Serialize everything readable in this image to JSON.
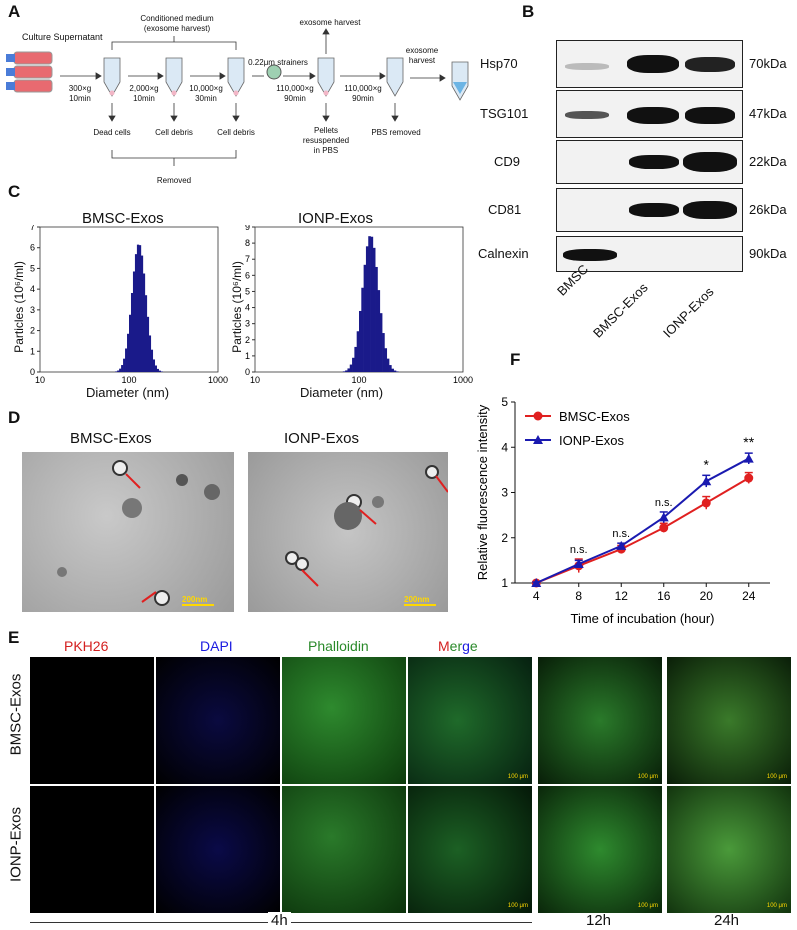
{
  "panels": {
    "A": "A",
    "B": "B",
    "C": "C",
    "D": "D",
    "E": "E",
    "F": "F"
  },
  "panel_a": {
    "culture_label": "Culture Supernatant",
    "top_bracket": "Conditioned medium\n(exosome harvest)",
    "step1": "300×g\n10min",
    "step2": "2,000×g\n10min",
    "step3": "10,000×g\n30min",
    "strainer": "0.22μm strainers",
    "step4": "110,000×g\n90min",
    "step5": "110,000×g\n90min",
    "harvest1": "exosome harvest",
    "harvest2": "exosome\nharvest",
    "dead_cells": "Dead cells",
    "cell_debris1": "Cell debris",
    "cell_debris2": "Cell debris",
    "pellets": "Pellets\nresuspended\nin PBS",
    "pbs_removed": "PBS removed",
    "removed": "Removed"
  },
  "panel_b": {
    "rows": [
      {
        "protein": "Hsp70",
        "kda": "70kDa"
      },
      {
        "protein": "TSG101",
        "kda": "47kDa"
      },
      {
        "protein": "CD9",
        "kda": "22kDa"
      },
      {
        "protein": "CD81",
        "kda": "26kDa"
      },
      {
        "protein": "Calnexin",
        "kda": "90kDa"
      }
    ],
    "lanes": [
      "BMSC",
      "BMSC-Exos",
      "IONP-Exos"
    ]
  },
  "panel_c": {
    "left_title": "BMSC-Exos",
    "right_title": "IONP-Exos",
    "xlabel": "Diameter (nm)",
    "ylabel": "Particles (10⁶/ml)",
    "left_yticks": [
      "0",
      "1",
      "2",
      "3",
      "4",
      "5",
      "6",
      "7"
    ],
    "right_yticks": [
      "0",
      "1",
      "2",
      "3",
      "4",
      "5",
      "6",
      "7",
      "8",
      "9"
    ],
    "xticks": [
      "10",
      "100",
      "1000"
    ]
  },
  "panel_d": {
    "left_title": "BMSC-Exos",
    "right_title": "IONP-Exos",
    "scale_left": "200nm",
    "scale_right": "200nm"
  },
  "panel_e": {
    "col_pkh": "PKH26",
    "col_dapi": "DAPI",
    "col_phal": "Phalloidin",
    "merge_m": "M",
    "merge_er": "er",
    "merge_g": "g",
    "merge_e": "e",
    "row1": "BMSC-Exos",
    "row2": "IONP-Exos",
    "t4": "4h",
    "t12": "12h",
    "t24": "24h",
    "scalebar": "100 μm"
  },
  "chart_data": {
    "type": "line",
    "x": [
      4,
      8,
      12,
      16,
      20,
      24
    ],
    "xlabel": "Time of incubation (hour)",
    "ylabel": "Relative fluorescence intensity",
    "xlim": [
      2,
      26
    ],
    "ylim": [
      1,
      5
    ],
    "yticks": [
      1,
      2,
      3,
      4,
      5
    ],
    "legend_position": "top-left",
    "series": [
      {
        "name": "BMSC-Exos",
        "color": "#e02020",
        "marker": "circle",
        "values": [
          1.0,
          1.38,
          1.75,
          2.22,
          2.77,
          3.32
        ],
        "errors": [
          0.02,
          0.15,
          0.08,
          0.1,
          0.14,
          0.12
        ]
      },
      {
        "name": "IONP-Exos",
        "color": "#1a1ab0",
        "marker": "triangle",
        "values": [
          1.0,
          1.42,
          1.82,
          2.45,
          3.25,
          3.75
        ],
        "errors": [
          0.02,
          0.08,
          0.06,
          0.12,
          0.13,
          0.12
        ]
      }
    ],
    "annotations": [
      "n.s.",
      "n.s.",
      "n.s.",
      "*",
      "**"
    ]
  }
}
